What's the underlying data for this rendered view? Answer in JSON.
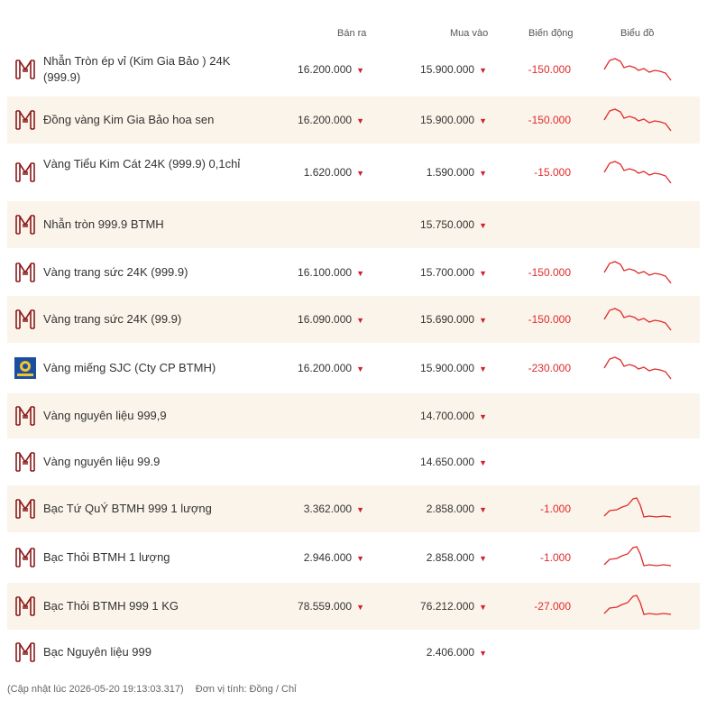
{
  "header": {
    "sell": "Bán ra",
    "buy": "Mua vào",
    "change": "Biến động",
    "chart": "Biểu đồ"
  },
  "colors": {
    "brand": "#8b1a1a",
    "down": "#d0202c",
    "alt_row": "#fbf4ea"
  },
  "rows": [
    {
      "name": "Nhẫn Tròn ép vỉ (Kim Gia Bảo ) 24K (999.9)",
      "sell": "16.200.000",
      "buy": "15.900.000",
      "change": "-150.000",
      "logo": "btmh-logo",
      "trend": "gold",
      "alt": false
    },
    {
      "name": "Đồng vàng Kim Gia Bảo hoa sen",
      "sell": "16.200.000",
      "buy": "15.900.000",
      "change": "-150.000",
      "logo": "btmh-logo",
      "trend": "gold",
      "alt": true
    },
    {
      "name": "Vàng Tiểu Kim Cát 24K (999.9) 0,1chỉ",
      "sell": "1.620.000",
      "buy": "1.590.000",
      "change": "-15.000",
      "logo": "btmh-logo",
      "trend": "gold",
      "alt": false
    },
    {
      "name": "Nhẫn tròn 999.9 BTMH",
      "sell": "",
      "buy": "15.750.000",
      "change": "",
      "logo": "btmh-logo",
      "trend": "",
      "alt": true
    },
    {
      "name": "Vàng trang sức 24K (999.9)",
      "sell": "16.100.000",
      "buy": "15.700.000",
      "change": "-150.000",
      "logo": "btmh-logo",
      "trend": "gold",
      "alt": false
    },
    {
      "name": "Vàng trang sức 24K (99.9)",
      "sell": "16.090.000",
      "buy": "15.690.000",
      "change": "-150.000",
      "logo": "btmh-logo",
      "trend": "gold",
      "alt": true
    },
    {
      "name": "Vàng miếng SJC (Cty CP BTMH)",
      "sell": "16.200.000",
      "buy": "15.900.000",
      "change": "-230.000",
      "logo": "sjc-logo",
      "trend": "gold",
      "alt": false
    },
    {
      "name": "Vàng nguyên liệu 999,9",
      "sell": "",
      "buy": "14.700.000",
      "change": "",
      "logo": "btmh-logo",
      "trend": "",
      "alt": true
    },
    {
      "name": "Vàng nguyên liệu 99.9",
      "sell": "",
      "buy": "14.650.000",
      "change": "",
      "logo": "btmh-logo",
      "trend": "",
      "alt": false
    },
    {
      "name": "Bạc Tứ QuÝ BTMH 999 1 lượng",
      "sell": "3.362.000",
      "buy": "2.858.000",
      "change": "-1.000",
      "logo": "btmh-logo",
      "trend": "silver",
      "alt": true
    },
    {
      "name": "Bạc Thỏi BTMH 1 lượng",
      "sell": "2.946.000",
      "buy": "2.858.000",
      "change": "-1.000",
      "logo": "btmh-logo",
      "trend": "silver",
      "alt": false
    },
    {
      "name": "Bạc Thỏi BTMH 999 1 KG",
      "sell": "78.559.000",
      "buy": "76.212.000",
      "change": "-27.000",
      "logo": "btmh-logo",
      "trend": "silver",
      "alt": true
    },
    {
      "name": "Bạc Nguyên liệu 999",
      "sell": "",
      "buy": "2.406.000",
      "change": "",
      "logo": "btmh-logo",
      "trend": "",
      "alt": false
    }
  ],
  "footer": {
    "updated": "(Cập nhật lúc 2026-05-20 19:13:03.317)",
    "unit": "Đơn vị tính: Đồng / Chỉ"
  }
}
